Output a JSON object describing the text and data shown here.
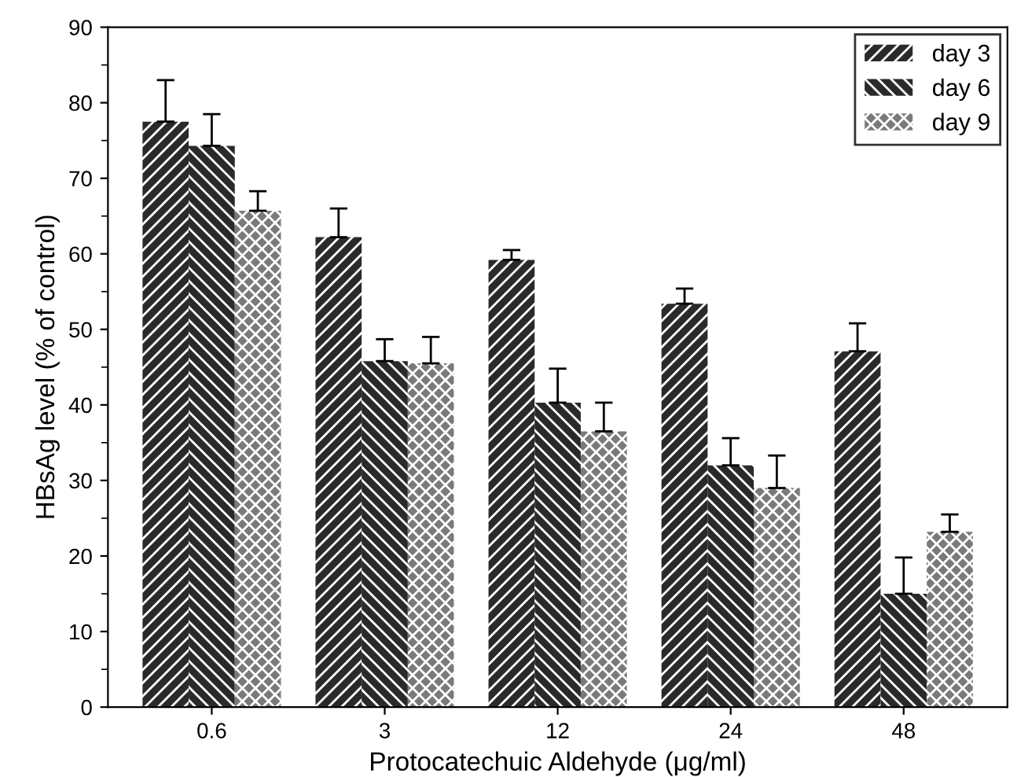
{
  "chart_data": {
    "type": "bar",
    "xlabel": "Protocatechuic Aldehyde (μg/ml)",
    "ylabel": "HBsAg level (% of control)",
    "categories": [
      "0.6",
      "3",
      "12",
      "24",
      "48"
    ],
    "series": [
      {
        "name": "day 3",
        "color": "#2a2a2a",
        "values": [
          77.5,
          62.2,
          59.2,
          53.4,
          47.1
        ],
        "errors": [
          [
            77.5,
            83
          ],
          [
            62.2,
            66
          ],
          [
            59.2,
            60.5
          ],
          [
            53.4,
            55.4
          ],
          [
            47.1,
            50.8
          ]
        ]
      },
      {
        "name": "day 6",
        "color": "#2a2a2a",
        "values": [
          74.3,
          45.8,
          40.3,
          32,
          15
        ],
        "errors": [
          [
            74.3,
            78.5
          ],
          [
            45.8,
            48.7
          ],
          [
            40.3,
            44.8
          ],
          [
            32,
            35.6
          ],
          [
            15,
            19.8
          ]
        ]
      },
      {
        "name": "day 9",
        "color": "#7a7a7a",
        "values": [
          65.7,
          45.5,
          36.5,
          29,
          23.2
        ],
        "errors": [
          [
            65.7,
            68.3
          ],
          [
            45.5,
            49
          ],
          [
            36.5,
            40.3
          ],
          [
            29,
            33.3
          ],
          [
            23.2,
            25.5
          ]
        ]
      }
    ],
    "ylim": [
      0,
      90
    ],
    "yticks": [
      0,
      10,
      20,
      30,
      40,
      50,
      60,
      70,
      80,
      90
    ],
    "grid": false,
    "legend": "top right"
  }
}
